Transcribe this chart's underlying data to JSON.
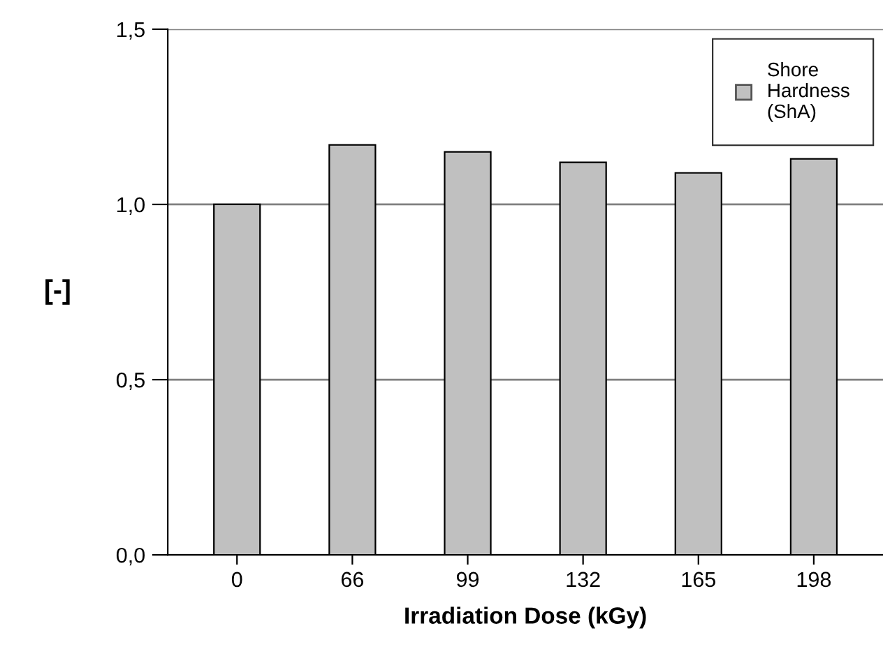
{
  "chart_data": {
    "type": "bar",
    "xlabel": "Irradiation Dose (kGy)",
    "ylabel": "[-]",
    "categories": [
      "0",
      "66",
      "99",
      "132",
      "165",
      "198"
    ],
    "series": [
      {
        "name": "Shore\nHardness\n(ShA)",
        "color": "#c0c0c0",
        "values": [
          1.0,
          1.17,
          1.15,
          1.12,
          1.09,
          1.13
        ]
      }
    ],
    "ylim": [
      0,
      1.5
    ],
    "yticks": [
      {
        "value": 0,
        "label": "0,0"
      },
      {
        "value": 0.5,
        "label": "0,5"
      },
      {
        "value": 1.0,
        "label": "1,0"
      },
      {
        "value": 1.5,
        "label": "1,5"
      }
    ],
    "grid": "y",
    "legend": "top right"
  }
}
